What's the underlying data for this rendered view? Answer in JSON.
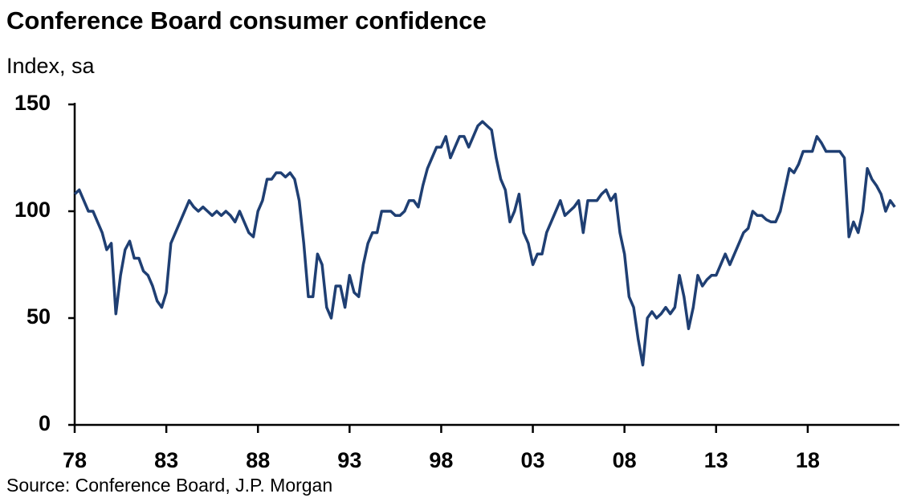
{
  "chart_data": {
    "type": "line",
    "title": "Conference Board consumer confidence",
    "subtitle": "Index, sa",
    "source": "Source: Conference Board, J.P. Morgan",
    "xlim": [
      1978,
      2023
    ],
    "ylim": [
      0,
      150
    ],
    "yticks": [
      0,
      50,
      100,
      150
    ],
    "xticks": [
      {
        "value": 1978,
        "label": "78"
      },
      {
        "value": 1983,
        "label": "83"
      },
      {
        "value": 1988,
        "label": "88"
      },
      {
        "value": 1993,
        "label": "93"
      },
      {
        "value": 1998,
        "label": "98"
      },
      {
        "value": 2003,
        "label": "03"
      },
      {
        "value": 2008,
        "label": "08"
      },
      {
        "value": 2013,
        "label": "13"
      },
      {
        "value": 2018,
        "label": "18"
      }
    ],
    "x": [
      1978,
      1978.25,
      1978.5,
      1978.75,
      1979,
      1979.25,
      1979.5,
      1979.75,
      1980,
      1980.25,
      1980.5,
      1980.75,
      1981,
      1981.25,
      1981.5,
      1981.75,
      1982,
      1982.25,
      1982.5,
      1982.75,
      1983,
      1983.25,
      1983.5,
      1983.75,
      1984,
      1984.25,
      1984.5,
      1984.75,
      1985,
      1985.25,
      1985.5,
      1985.75,
      1986,
      1986.25,
      1986.5,
      1986.75,
      1987,
      1987.25,
      1987.5,
      1987.75,
      1988,
      1988.25,
      1988.5,
      1988.75,
      1989,
      1989.25,
      1989.5,
      1989.75,
      1990,
      1990.25,
      1990.5,
      1990.75,
      1991,
      1991.25,
      1991.5,
      1991.75,
      1992,
      1992.25,
      1992.5,
      1992.75,
      1993,
      1993.25,
      1993.5,
      1993.75,
      1994,
      1994.25,
      1994.5,
      1994.75,
      1995,
      1995.25,
      1995.5,
      1995.75,
      1996,
      1996.25,
      1996.5,
      1996.75,
      1997,
      1997.25,
      1997.5,
      1997.75,
      1998,
      1998.25,
      1998.5,
      1998.75,
      1999,
      1999.25,
      1999.5,
      1999.75,
      2000,
      2000.25,
      2000.5,
      2000.75,
      2001,
      2001.25,
      2001.5,
      2001.75,
      2002,
      2002.25,
      2002.5,
      2002.75,
      2003,
      2003.25,
      2003.5,
      2003.75,
      2004,
      2004.25,
      2004.5,
      2004.75,
      2005,
      2005.25,
      2005.5,
      2005.75,
      2006,
      2006.25,
      2006.5,
      2006.75,
      2007,
      2007.25,
      2007.5,
      2007.75,
      2008,
      2008.25,
      2008.5,
      2008.75,
      2009,
      2009.25,
      2009.5,
      2009.75,
      2010,
      2010.25,
      2010.5,
      2010.75,
      2011,
      2011.25,
      2011.5,
      2011.75,
      2012,
      2012.25,
      2012.5,
      2012.75,
      2013,
      2013.25,
      2013.5,
      2013.75,
      2014,
      2014.25,
      2014.5,
      2014.75,
      2015,
      2015.25,
      2015.5,
      2015.75,
      2016,
      2016.25,
      2016.5,
      2016.75,
      2017,
      2017.25,
      2017.5,
      2017.75,
      2018,
      2018.25,
      2018.5,
      2018.75,
      2019,
      2019.25,
      2019.5,
      2019.75,
      2020,
      2020.25,
      2020.5,
      2020.75,
      2021,
      2021.25,
      2021.5,
      2021.75,
      2022,
      2022.25,
      2022.5,
      2022.75
    ],
    "series": [
      {
        "name": "Conference Board consumer confidence",
        "color": "#1f3f73",
        "values": [
          108,
          110,
          105,
          100,
          100,
          95,
          90,
          82,
          85,
          52,
          70,
          82,
          86,
          78,
          78,
          72,
          70,
          65,
          58,
          55,
          62,
          85,
          90,
          95,
          100,
          105,
          102,
          100,
          102,
          100,
          98,
          100,
          98,
          100,
          98,
          95,
          100,
          95,
          90,
          88,
          100,
          105,
          115,
          115,
          118,
          118,
          116,
          118,
          115,
          105,
          85,
          60,
          60,
          80,
          75,
          55,
          50,
          65,
          65,
          55,
          70,
          62,
          60,
          75,
          85,
          90,
          90,
          100,
          100,
          100,
          98,
          98,
          100,
          105,
          105,
          102,
          112,
          120,
          125,
          130,
          130,
          135,
          125,
          130,
          135,
          135,
          130,
          135,
          140,
          142,
          140,
          138,
          125,
          115,
          110,
          95,
          100,
          108,
          90,
          85,
          75,
          80,
          80,
          90,
          95,
          100,
          105,
          98,
          100,
          102,
          105,
          90,
          105,
          105,
          105,
          108,
          110,
          105,
          108,
          90,
          80,
          60,
          55,
          40,
          28,
          50,
          53,
          50,
          52,
          55,
          52,
          55,
          70,
          60,
          45,
          55,
          70,
          65,
          68,
          70,
          70,
          75,
          80,
          75,
          80,
          85,
          90,
          92,
          100,
          98,
          98,
          96,
          95,
          95,
          100,
          110,
          120,
          118,
          122,
          128,
          128,
          128,
          135,
          132,
          128,
          128,
          128,
          128,
          125,
          88,
          95,
          90,
          100,
          120,
          115,
          112,
          108,
          100,
          105,
          102
        ]
      }
    ]
  }
}
